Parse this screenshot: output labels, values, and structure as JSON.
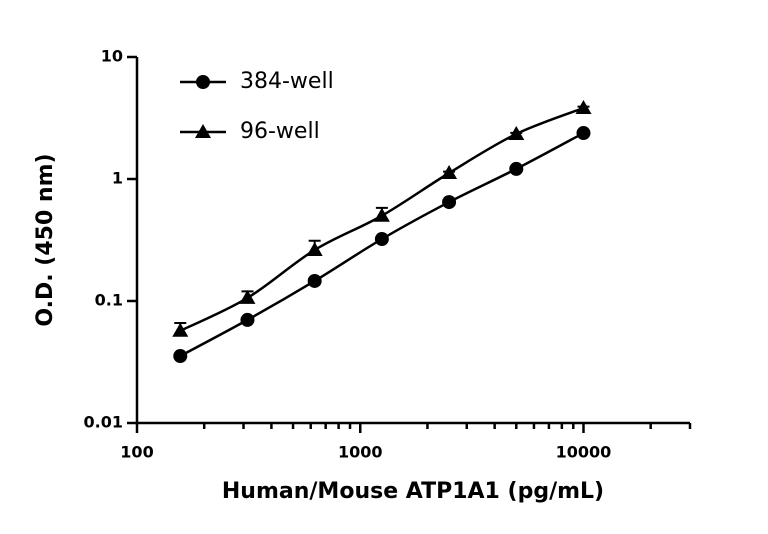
{
  "chart_data": {
    "type": "line",
    "x_label": "Human/Mouse ATP1A1 (pg/mL)",
    "y_label": "O.D. (450 nm)",
    "x": [
      156.25,
      312.5,
      625,
      1250,
      2500,
      5000,
      10000
    ],
    "series": [
      {
        "name": "384-well",
        "color": "#000000",
        "marker": "circle",
        "values": [
          0.0354,
          0.07,
          0.146,
          0.322,
          0.647,
          1.21,
          2.38
        ]
      },
      {
        "name": "96-well",
        "color": "#000000",
        "marker": "triangle",
        "values": [
          0.057,
          0.106,
          0.262,
          0.5,
          1.12,
          2.34,
          3.82
        ],
        "errors": [
          0.009,
          0.014,
          0.05,
          0.08,
          0.03,
          0.05,
          0.1
        ]
      }
    ],
    "xlim": [
      100,
      30000
    ],
    "ylim": [
      0.01,
      10
    ],
    "xscale": "log",
    "yscale": "log",
    "xticks": [
      100,
      1000,
      10000
    ],
    "xminorticks": [
      200,
      300,
      400,
      500,
      600,
      700,
      800,
      900,
      2000,
      3000,
      4000,
      5000,
      6000,
      7000,
      8000,
      9000,
      20000,
      30000
    ],
    "yticks": [
      0.01,
      0.1,
      1,
      10
    ],
    "legend": "upper left"
  }
}
